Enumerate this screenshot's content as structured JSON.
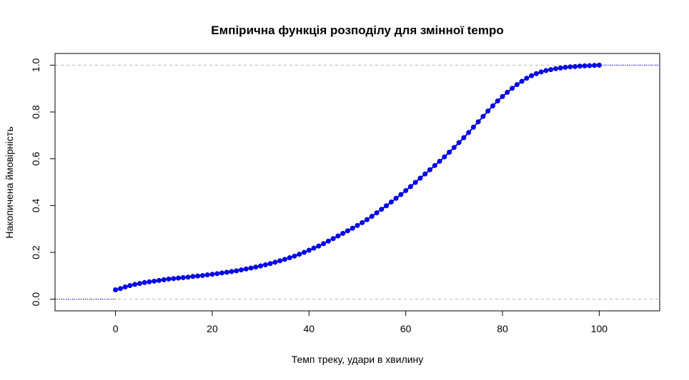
{
  "chart_data": {
    "type": "line",
    "title": "Емпірична функція розподілу для змінної tempo",
    "xlabel": "Темп треку, удари в хвилину",
    "ylabel": "Накопичена ймовірність",
    "xlim": [
      -12.5,
      112.5
    ],
    "ylim": [
      -0.05,
      1.05
    ],
    "xticks": [
      0,
      20,
      40,
      60,
      80,
      100
    ],
    "yticks": [
      0.0,
      0.2,
      0.4,
      0.6,
      0.8,
      1.0
    ],
    "xtick_labels": [
      "0",
      "20",
      "40",
      "60",
      "80",
      "100"
    ],
    "ytick_labels": [
      "0.0",
      "0.2",
      "0.4",
      "0.6",
      "0.8",
      "1.0"
    ],
    "grid": false,
    "reference_lines": [
      0,
      1
    ],
    "series": [
      {
        "color": "#0000ff",
        "x": [
          0,
          1,
          2,
          3,
          4,
          5,
          6,
          7,
          8,
          9,
          10,
          11,
          12,
          13,
          14,
          15,
          16,
          17,
          18,
          19,
          20,
          21,
          22,
          23,
          24,
          25,
          26,
          27,
          28,
          29,
          30,
          31,
          32,
          33,
          34,
          35,
          36,
          37,
          38,
          39,
          40,
          41,
          42,
          43,
          44,
          45,
          46,
          47,
          48,
          49,
          50,
          51,
          52,
          53,
          54,
          55,
          56,
          57,
          58,
          59,
          60,
          61,
          62,
          63,
          64,
          65,
          66,
          67,
          68,
          69,
          70,
          71,
          72,
          73,
          74,
          75,
          76,
          77,
          78,
          79,
          80,
          81,
          82,
          83,
          84,
          85,
          86,
          87,
          88,
          89,
          90,
          91,
          92,
          93,
          94,
          95,
          96,
          97,
          98,
          99,
          100
        ],
        "y": [
          0.04,
          0.045,
          0.052,
          0.058,
          0.063,
          0.067,
          0.071,
          0.074,
          0.077,
          0.08,
          0.083,
          0.086,
          0.088,
          0.09,
          0.092,
          0.094,
          0.097,
          0.099,
          0.101,
          0.104,
          0.106,
          0.109,
          0.112,
          0.115,
          0.118,
          0.121,
          0.125,
          0.129,
          0.133,
          0.137,
          0.142,
          0.147,
          0.152,
          0.158,
          0.164,
          0.17,
          0.177,
          0.184,
          0.192,
          0.2,
          0.209,
          0.218,
          0.227,
          0.237,
          0.248,
          0.259,
          0.27,
          0.281,
          0.292,
          0.303,
          0.315,
          0.327,
          0.34,
          0.354,
          0.369,
          0.384,
          0.399,
          0.415,
          0.431,
          0.447,
          0.464,
          0.481,
          0.499,
          0.517,
          0.535,
          0.553,
          0.571,
          0.589,
          0.608,
          0.628,
          0.648,
          0.669,
          0.69,
          0.712,
          0.735,
          0.758,
          0.781,
          0.804,
          0.826,
          0.847,
          0.866,
          0.884,
          0.901,
          0.917,
          0.931,
          0.944,
          0.955,
          0.964,
          0.971,
          0.977,
          0.981,
          0.985,
          0.988,
          0.991,
          0.993,
          0.994,
          0.996,
          0.997,
          0.998,
          0.999,
          1.0
        ]
      }
    ]
  }
}
